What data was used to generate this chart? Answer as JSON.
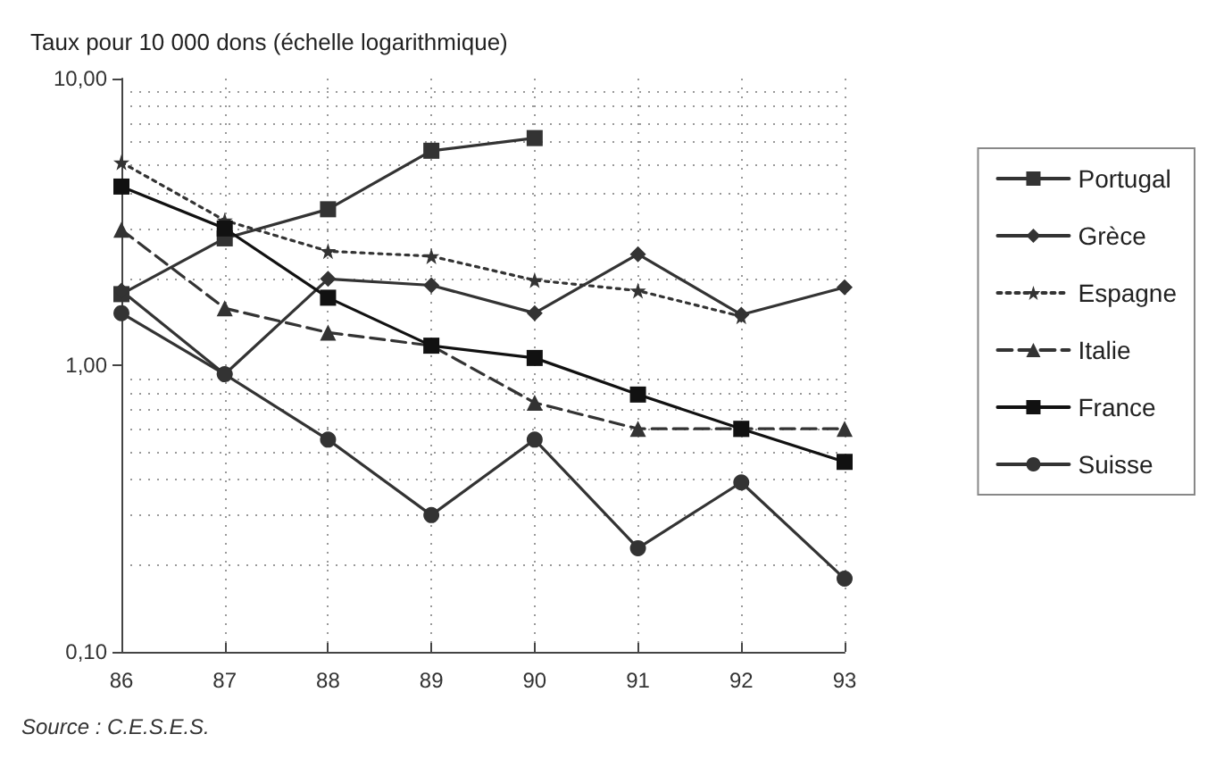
{
  "chart_data": {
    "type": "line",
    "title": "Taux pour 10 000 dons (échelle logarithmique)",
    "categories": [
      "86",
      "87",
      "88",
      "89",
      "90",
      "91",
      "92",
      "93"
    ],
    "series": [
      {
        "name": "Portugal",
        "color": "#333333",
        "marker": "square",
        "line_style": "solid",
        "values": [
          1.77,
          2.77,
          3.5,
          5.6,
          6.2,
          null,
          null,
          null
        ]
      },
      {
        "name": "Grèce",
        "color": "#333333",
        "marker": "diamond",
        "line_style": "solid",
        "values": [
          1.82,
          0.93,
          2.0,
          1.9,
          1.52,
          2.44,
          1.5,
          1.87
        ]
      },
      {
        "name": "Espagne",
        "color": "#333333",
        "marker": "star",
        "line_style": "dotted",
        "values": [
          5.1,
          3.2,
          2.5,
          2.4,
          1.98,
          1.82,
          1.48,
          null
        ]
      },
      {
        "name": "Italie",
        "color": "#333333",
        "marker": "triangle",
        "line_style": "dashed",
        "values": [
          2.97,
          1.58,
          1.3,
          1.17,
          0.74,
          0.6,
          0.6,
          0.6
        ]
      },
      {
        "name": "France",
        "color": "#111111",
        "marker": "square",
        "line_style": "solid",
        "values": [
          4.2,
          3.0,
          1.72,
          1.17,
          1.06,
          0.79,
          0.6,
          0.46
        ]
      },
      {
        "name": "Suisse",
        "color": "#333333",
        "marker": "circle",
        "line_style": "solid",
        "values": [
          1.52,
          0.93,
          0.55,
          0.3,
          0.55,
          0.23,
          0.39,
          0.18
        ]
      }
    ],
    "log": true,
    "ylim": [
      0.1,
      10
    ],
    "yticks": [
      {
        "value": 0.1,
        "label": "0,10"
      },
      {
        "value": 1,
        "label": "1,00"
      },
      {
        "value": 10,
        "label": "10,00"
      }
    ],
    "grid": true,
    "legend": "right",
    "annotations": [
      "Source : C.E.S.E.S."
    ]
  }
}
